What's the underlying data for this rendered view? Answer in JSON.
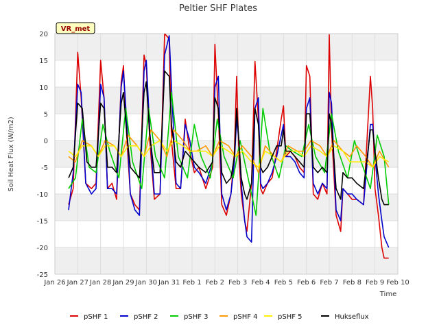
{
  "chart_data": {
    "type": "line",
    "title": "Peltier SHF Plates",
    "xlabel": "Time",
    "ylabel": "Soil Heat Flux (W/m2)",
    "annotation": "VR_met",
    "ylim": [
      -25,
      20
    ],
    "xlim": [
      0,
      15
    ],
    "yticks": [
      20,
      15,
      10,
      5,
      0,
      -5,
      -10,
      -15,
      -20,
      -25
    ],
    "xtick_labels": [
      "Jan 26",
      "Jan 27",
      "Jan 28",
      "Jan 29",
      "Jan 30",
      "Jan 31",
      "Feb 1",
      "Feb 2",
      "Feb 3",
      "Feb 4",
      "Feb 5",
      "Feb 6",
      "Feb 7",
      "Feb 8",
      "Feb 9",
      "Feb 10"
    ],
    "grid": true,
    "legend_position": "bottom",
    "bands": [
      [
        15,
        20
      ],
      [
        5,
        10
      ],
      [
        -5,
        0
      ],
      [
        -15,
        -10
      ],
      [
        -25,
        -20
      ]
    ],
    "series": [
      {
        "name": "pSHF 1",
        "color": "#dd0000",
        "x": [
          0.6,
          0.8,
          1.0,
          1.15,
          1.35,
          1.6,
          1.8,
          2.0,
          2.15,
          2.3,
          2.5,
          2.7,
          2.9,
          3.0,
          3.15,
          3.3,
          3.5,
          3.7,
          3.9,
          4.0,
          4.15,
          4.35,
          4.6,
          4.8,
          5.0,
          5.1,
          5.3,
          5.5,
          5.7,
          5.9,
          6.1,
          6.3,
          6.6,
          6.9,
          7.0,
          7.15,
          7.3,
          7.5,
          7.7,
          7.85,
          7.95,
          8.05,
          8.15,
          8.3,
          8.4,
          8.6,
          8.75,
          8.9,
          9.0,
          9.1,
          9.3,
          9.5,
          9.7,
          9.9,
          10.0,
          10.1,
          10.3,
          10.5,
          10.7,
          10.9,
          11.0,
          11.15,
          11.3,
          11.5,
          11.7,
          11.9,
          12.0,
          12.1,
          12.3,
          12.5,
          12.6,
          12.8,
          13.0,
          13.2,
          13.5,
          13.8,
          13.9,
          14.0,
          14.15,
          14.3,
          14.4,
          14.5,
          14.6
        ],
        "y": [
          -12,
          -9,
          16.5,
          8,
          -8,
          -9,
          -8,
          15,
          8,
          -9,
          -8,
          -11,
          11,
          14,
          0,
          -10,
          -12,
          -13,
          16,
          14,
          0,
          -11,
          -10,
          20,
          19,
          0,
          -9,
          -9,
          4,
          -2,
          -6,
          -5,
          -9,
          -5,
          18,
          5,
          -12,
          -14,
          -10,
          -2,
          12,
          -3,
          -10,
          -15,
          -17,
          -8,
          14.8,
          4,
          -9,
          -10,
          -8,
          -7,
          -2,
          4,
          6.5,
          -3,
          -2,
          -3,
          -5,
          -6,
          14,
          12,
          -10,
          -11,
          -8,
          -10,
          19.8,
          2,
          -14,
          -17,
          -9,
          -10,
          -11,
          -11,
          -12,
          12,
          6,
          -9,
          -14,
          -20,
          -22,
          -22,
          -22
        ]
      },
      {
        "name": "pSHF 2",
        "color": "#0000cc",
        "x": [
          0.6,
          0.8,
          1.0,
          1.15,
          1.35,
          1.6,
          1.8,
          2.0,
          2.15,
          2.3,
          2.5,
          2.7,
          2.9,
          3.0,
          3.15,
          3.3,
          3.5,
          3.7,
          3.9,
          4.0,
          4.15,
          4.35,
          4.6,
          4.8,
          5.0,
          5.1,
          5.3,
          5.5,
          5.7,
          5.9,
          6.1,
          6.3,
          6.6,
          6.9,
          7.0,
          7.15,
          7.3,
          7.5,
          7.7,
          7.85,
          7.95,
          8.05,
          8.15,
          8.3,
          8.4,
          8.6,
          8.75,
          8.9,
          9.0,
          9.1,
          9.3,
          9.5,
          9.7,
          9.9,
          10.0,
          10.1,
          10.3,
          10.5,
          10.7,
          10.9,
          11.0,
          11.15,
          11.3,
          11.5,
          11.7,
          11.9,
          12.0,
          12.1,
          12.3,
          12.5,
          12.6,
          12.8,
          13.0,
          13.2,
          13.5,
          13.8,
          13.9,
          14.0,
          14.15,
          14.3,
          14.4,
          14.5,
          14.6
        ],
        "y": [
          -13,
          -6,
          10.5,
          9,
          -8,
          -10,
          -9,
          10.5,
          8,
          -9,
          -9,
          -10,
          10,
          13,
          3,
          -10,
          -13,
          -14,
          13,
          15,
          2,
          -10,
          -10,
          16,
          19.6,
          10,
          -8,
          -9,
          3,
          0,
          -5,
          -6,
          -8,
          -4,
          10,
          12,
          -10,
          -13,
          -10,
          -4,
          4,
          0,
          -8,
          -15,
          -18,
          -19,
          6,
          8,
          -8,
          -9,
          -8,
          -6,
          -3,
          1,
          3,
          -3,
          -3,
          -4,
          -6,
          -7,
          6,
          8,
          -8,
          -10,
          -8,
          -9,
          9,
          7,
          -13,
          -15,
          -9,
          -10,
          -10,
          -11,
          -12,
          3,
          3,
          -3,
          -10,
          -15,
          -18,
          -19,
          -20
        ]
      },
      {
        "name": "pSHF 3",
        "color": "#00cc00",
        "x": [
          0.6,
          0.9,
          1.2,
          1.5,
          1.8,
          2.1,
          2.4,
          2.8,
          3.1,
          3.4,
          3.8,
          4.1,
          4.4,
          4.8,
          5.1,
          5.4,
          5.8,
          6.1,
          6.4,
          6.8,
          7.1,
          7.4,
          7.8,
          8.1,
          8.4,
          8.8,
          9.1,
          9.4,
          9.8,
          10.1,
          10.4,
          10.8,
          11.1,
          11.4,
          11.8,
          12.1,
          12.4,
          12.8,
          13.1,
          13.4,
          13.8,
          14.1,
          14.4,
          14.6
        ],
        "y": [
          -9,
          -7,
          4,
          -5,
          -6,
          3,
          -2,
          -7,
          6,
          -4,
          -9,
          6,
          -3,
          -7,
          9,
          -3,
          -7,
          3,
          -3,
          -7,
          4,
          -3,
          -7,
          0,
          -6,
          -14,
          6,
          -2,
          -7,
          -1,
          -2,
          -3,
          3,
          -3,
          -6,
          5,
          -2,
          -7,
          0,
          -4,
          -9,
          1,
          -3,
          -12
        ]
      },
      {
        "name": "pSHF 4",
        "color": "#ff9900",
        "x": [
          0.6,
          0.9,
          1.2,
          1.6,
          1.9,
          2.2,
          2.6,
          2.9,
          3.2,
          3.6,
          3.9,
          4.2,
          4.6,
          4.9,
          5.2,
          5.6,
          5.9,
          6.2,
          6.6,
          6.9,
          7.2,
          7.6,
          7.9,
          8.2,
          8.6,
          8.9,
          9.2,
          9.6,
          9.9,
          10.2,
          10.6,
          10.9,
          11.2,
          11.6,
          11.9,
          12.2,
          12.6,
          12.9,
          13.2,
          13.6,
          13.9,
          14.2,
          14.6
        ],
        "y": [
          -3,
          -4,
          0,
          -1,
          -3,
          0,
          -1,
          -3,
          1,
          -1,
          -3,
          2,
          0,
          -3,
          2,
          0,
          -2,
          -2,
          -1,
          -3,
          0,
          -1,
          -3,
          -1,
          -3,
          -6,
          -1,
          -3,
          -4,
          -1,
          -2,
          -2,
          0,
          -1,
          -3,
          0,
          -2,
          -3,
          -1,
          -3,
          -5,
          -2,
          -5
        ]
      },
      {
        "name": "pSHF 5",
        "color": "#ffee00",
        "x": [
          0.6,
          0.9,
          1.2,
          1.6,
          1.9,
          2.2,
          2.6,
          2.9,
          3.2,
          3.6,
          3.9,
          4.2,
          4.6,
          4.9,
          5.2,
          5.6,
          5.9,
          6.2,
          6.6,
          6.9,
          7.2,
          7.6,
          7.9,
          8.2,
          8.6,
          8.9,
          9.2,
          9.6,
          9.9,
          10.2,
          10.6,
          10.9,
          11.2,
          11.6,
          11.9,
          12.2,
          12.6,
          12.9,
          13.2,
          13.6,
          13.9,
          14.2,
          14.6
        ],
        "y": [
          -2,
          -3,
          -1,
          -1,
          -3,
          -1,
          -1,
          -3,
          -1,
          -1,
          -3,
          -1,
          0,
          -2,
          0,
          -1,
          -2,
          -2,
          -2,
          -3,
          -1,
          -2,
          -3,
          -2,
          -4,
          -5,
          -2,
          -3,
          -4,
          -2,
          -2,
          -3,
          -1,
          -2,
          -3,
          -1,
          -2,
          -4,
          -4,
          -4,
          -5,
          -3,
          -4
        ]
      },
      {
        "name": "Hukseflux",
        "color": "#000000",
        "x": [
          0.6,
          0.8,
          1.0,
          1.2,
          1.4,
          1.6,
          1.8,
          2.0,
          2.15,
          2.3,
          2.5,
          2.7,
          2.9,
          3.0,
          3.15,
          3.3,
          3.5,
          3.7,
          3.9,
          4.0,
          4.15,
          4.35,
          4.6,
          4.8,
          5.0,
          5.1,
          5.3,
          5.5,
          5.7,
          5.9,
          6.1,
          6.3,
          6.6,
          6.9,
          7.0,
          7.15,
          7.3,
          7.5,
          7.7,
          7.85,
          7.95,
          8.05,
          8.15,
          8.3,
          8.4,
          8.6,
          8.75,
          8.9,
          9.0,
          9.1,
          9.3,
          9.5,
          9.7,
          9.9,
          10.0,
          10.1,
          10.3,
          10.5,
          10.7,
          10.9,
          11.0,
          11.15,
          11.3,
          11.5,
          11.7,
          11.9,
          12.0,
          12.1,
          12.3,
          12.5,
          12.6,
          12.8,
          13.0,
          13.2,
          13.5,
          13.8,
          13.9,
          14.0,
          14.15,
          14.3,
          14.4,
          14.5,
          14.6
        ],
        "y": [
          -7,
          -5,
          7,
          6,
          -4,
          -5,
          -5,
          7,
          6,
          -5,
          -5,
          -6,
          7,
          9,
          1,
          -5,
          -6,
          -7,
          9,
          11,
          1,
          -6,
          -6,
          13,
          12,
          3,
          -4,
          -5,
          -2,
          -3,
          -4,
          -5,
          -6,
          -4,
          8,
          6,
          -6,
          -8,
          -7,
          -3,
          6,
          0,
          -7,
          -10,
          -11,
          -8,
          6,
          3,
          -5,
          -6,
          -5,
          -3,
          -1,
          -1,
          2,
          -2,
          -2,
          -3,
          -4,
          -5,
          5,
          5,
          -5,
          -6,
          -5,
          -6,
          5,
          3,
          -9,
          -11,
          -6,
          -7,
          -7,
          -8,
          -9,
          2,
          2,
          -2,
          -7,
          -11,
          -12,
          -12,
          -12
        ]
      }
    ]
  }
}
